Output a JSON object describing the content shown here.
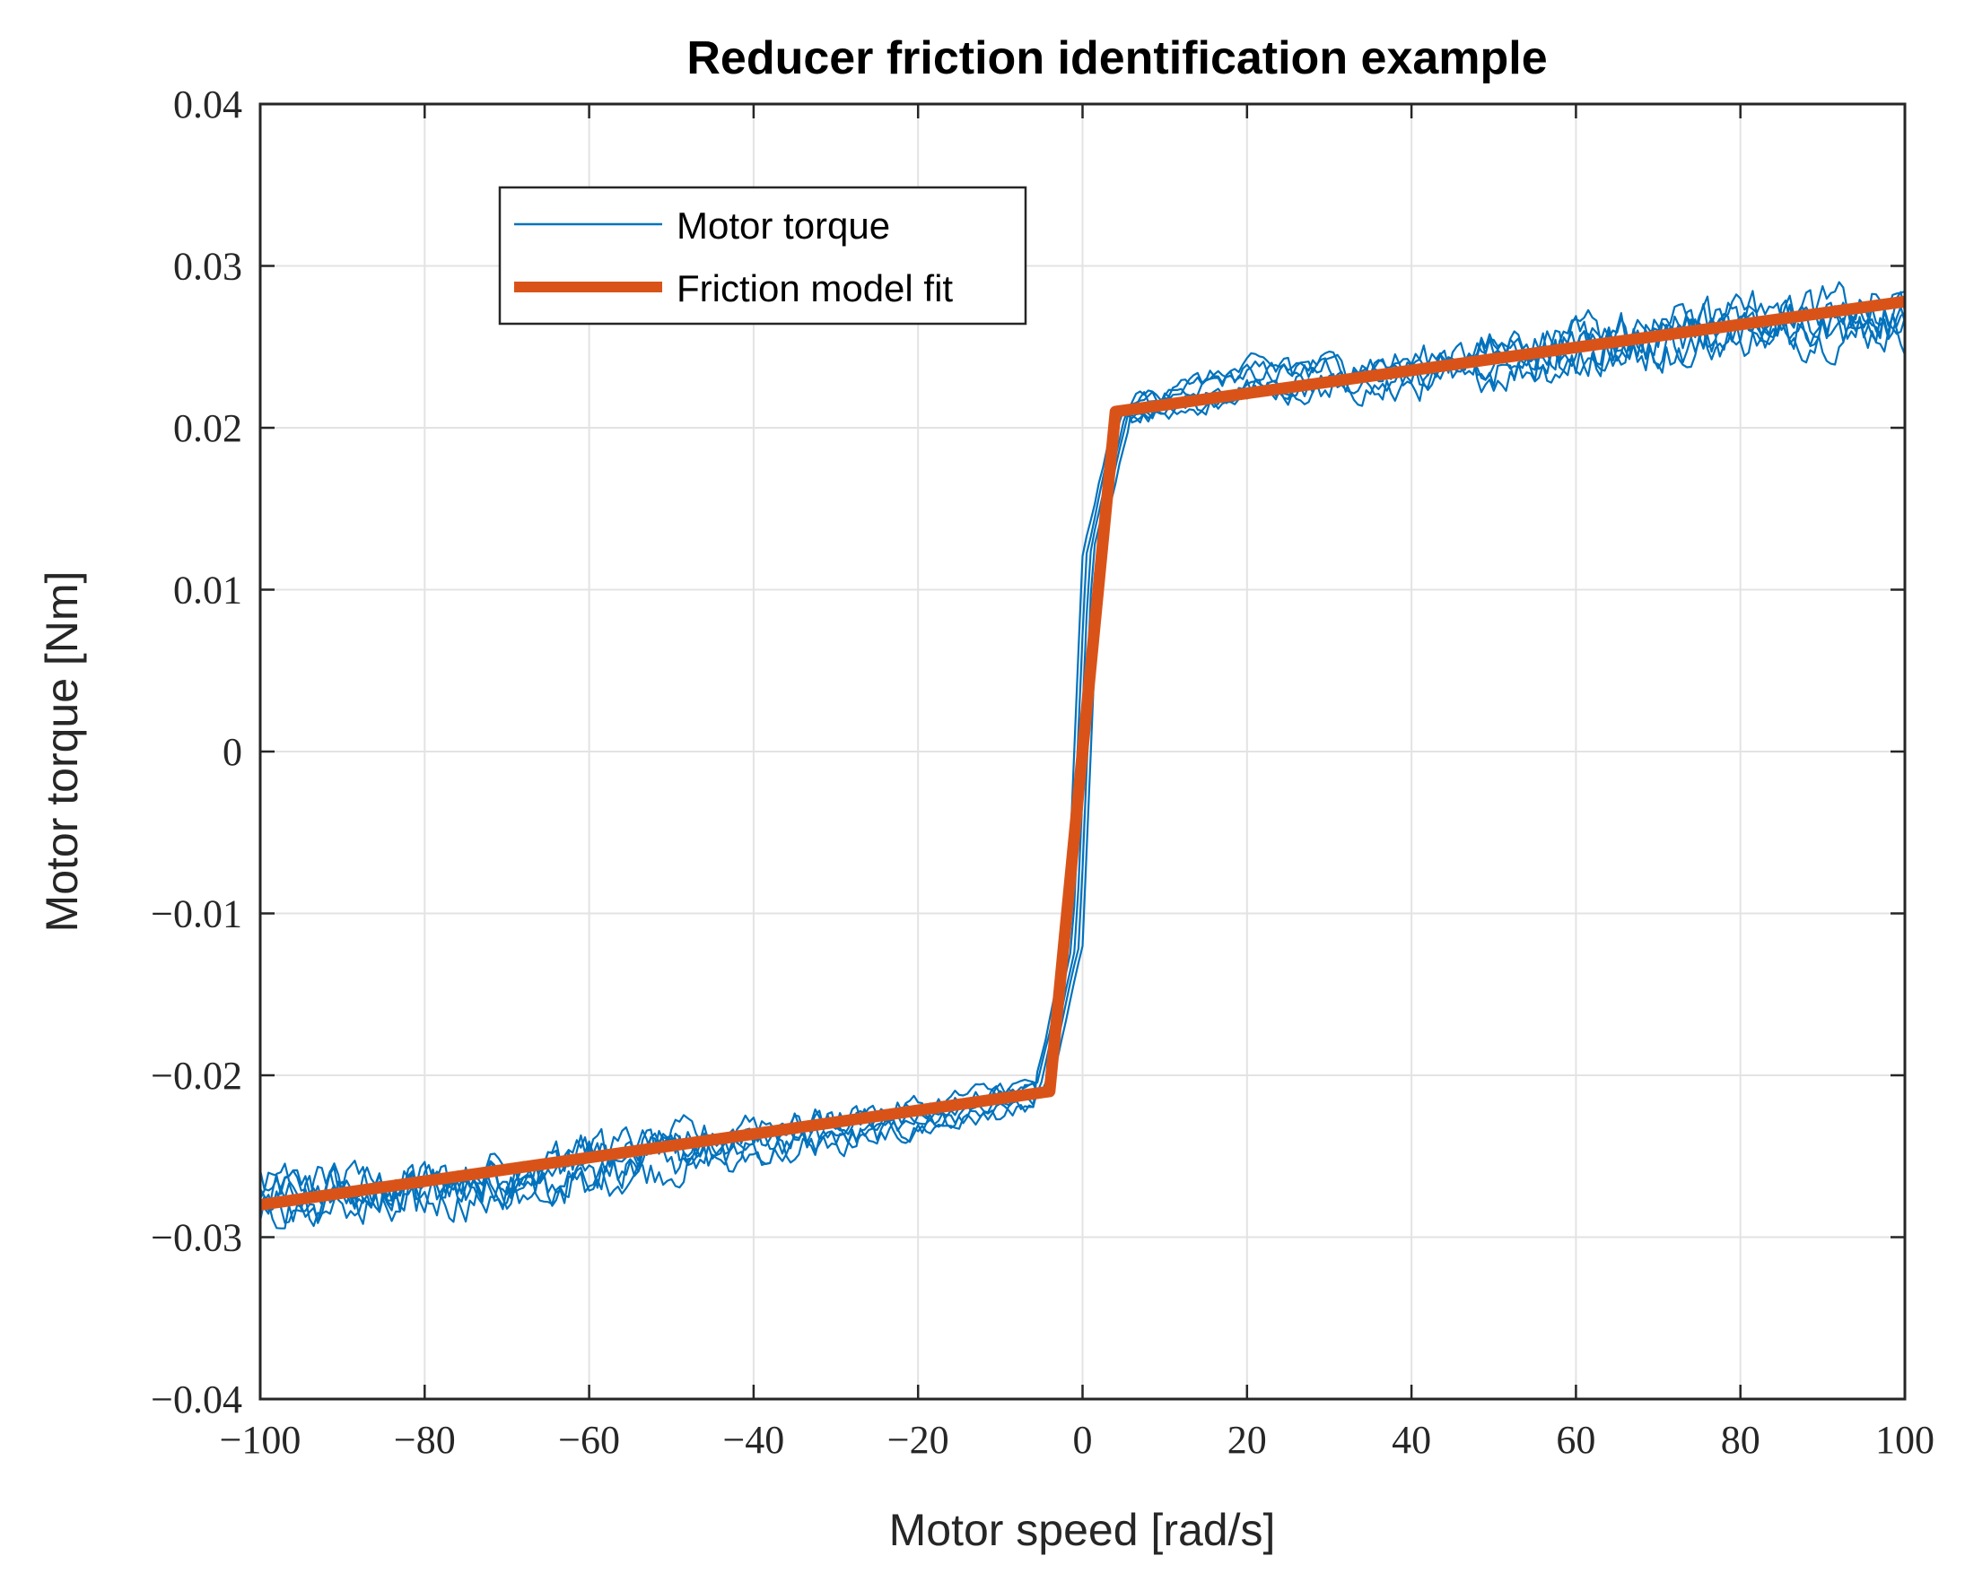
{
  "chart_data": {
    "type": "line",
    "title": "Reducer friction identification example",
    "xlabel": "Motor speed [rad/s]",
    "ylabel": "Motor torque [Nm]",
    "xlim": [
      -100,
      100
    ],
    "ylim": [
      -0.04,
      0.04
    ],
    "grid": true,
    "legend_position": "top-left",
    "xticks": [
      -100,
      -80,
      -60,
      -40,
      -20,
      0,
      20,
      40,
      60,
      80,
      100
    ],
    "xtick_labels": [
      "−100",
      "−80",
      "−60",
      "−40",
      "−20",
      "0",
      "20",
      "40",
      "60",
      "80",
      "100"
    ],
    "yticks": [
      -0.04,
      -0.03,
      -0.02,
      -0.01,
      0,
      0.01,
      0.02,
      0.03,
      0.04
    ],
    "ytick_labels": [
      "−0.04",
      "−0.03",
      "−0.02",
      "−0.01",
      "0",
      "0.01",
      "0.02",
      "0.03",
      "0.04"
    ],
    "series": [
      {
        "name": "Motor torque",
        "color": "#0072BD",
        "kind": "noisy-measurement",
        "trace_count": 6,
        "noise_amplitude": 0.0025,
        "approx_points": [
          {
            "x": -100,
            "y": -0.0275
          },
          {
            "x": -80,
            "y": -0.027
          },
          {
            "x": -60,
            "y": -0.0255
          },
          {
            "x": -40,
            "y": -0.024
          },
          {
            "x": -20,
            "y": -0.0225
          },
          {
            "x": -5,
            "y": -0.021
          },
          {
            "x": -1,
            "y": -0.012
          },
          {
            "x": 0,
            "y": 0
          },
          {
            "x": 1,
            "y": 0.012
          },
          {
            "x": 5,
            "y": 0.021
          },
          {
            "x": 20,
            "y": 0.023
          },
          {
            "x": 40,
            "y": 0.0235
          },
          {
            "x": 60,
            "y": 0.025
          },
          {
            "x": 80,
            "y": 0.0265
          },
          {
            "x": 100,
            "y": 0.027
          }
        ]
      },
      {
        "name": "Friction model fit",
        "color": "#D95319",
        "kind": "model",
        "x": [
          -100,
          -4,
          0,
          4,
          100
        ],
        "y": [
          -0.028,
          -0.021,
          0,
          0.021,
          0.0278
        ]
      }
    ]
  }
}
